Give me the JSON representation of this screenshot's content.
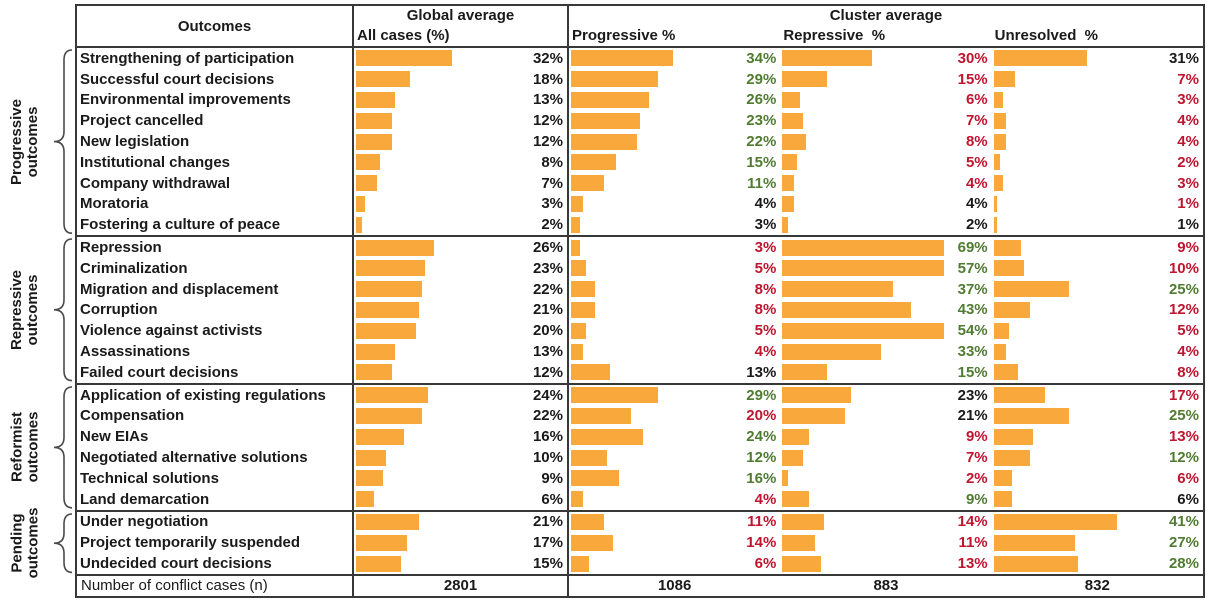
{
  "palette": {
    "bar_orange": "#F9A93C",
    "green": "#507C32",
    "red": "#C0152F",
    "black": "#1A1A1A",
    "border": "#383838"
  },
  "header": {
    "outcomes": "Outcomes",
    "global_title": "Global average",
    "global_sub": "All cases (%)",
    "cluster_title": "Cluster average",
    "cluster_subs": [
      "Progressive %",
      "Repressive  %",
      "Unresolved  %"
    ]
  },
  "footer": {
    "label": "Number of conflict cases (n)",
    "values": [
      "2801",
      "1086",
      "883",
      "832"
    ]
  },
  "chart_data": {
    "type": "bar",
    "orientation": "horizontal",
    "unit": "percent",
    "value_columns": [
      "All cases (%)",
      "Progressive %",
      "Repressive %",
      "Unresolved %"
    ],
    "groups": [
      {
        "label": "Progressive outcomes",
        "label_lines": [
          "Progressive",
          "outcomes"
        ],
        "rows": [
          {
            "name": "Strengthening of participation",
            "global": {
              "value": 32,
              "label": "32%"
            },
            "cluster": [
              {
                "value": 34,
                "label": "34%",
                "color": "green"
              },
              {
                "value": 30,
                "label": "30%",
                "color": "red"
              },
              {
                "value": 31,
                "label": "31%",
                "color": "black"
              }
            ]
          },
          {
            "name": "Successful court decisions",
            "global": {
              "value": 18,
              "label": "18%"
            },
            "cluster": [
              {
                "value": 29,
                "label": "29%",
                "color": "green"
              },
              {
                "value": 15,
                "label": "15%",
                "color": "red"
              },
              {
                "value": 7,
                "label": "7%",
                "color": "red"
              }
            ]
          },
          {
            "name": "Environmental improvements",
            "global": {
              "value": 13,
              "label": "13%"
            },
            "cluster": [
              {
                "value": 26,
                "label": "26%",
                "color": "green"
              },
              {
                "value": 6,
                "label": "6%",
                "color": "red"
              },
              {
                "value": 3,
                "label": "3%",
                "color": "red"
              }
            ]
          },
          {
            "name": "Project cancelled",
            "global": {
              "value": 12,
              "label": "12%"
            },
            "cluster": [
              {
                "value": 23,
                "label": "23%",
                "color": "green"
              },
              {
                "value": 7,
                "label": "7%",
                "color": "red"
              },
              {
                "value": 4,
                "label": "4%",
                "color": "red"
              }
            ]
          },
          {
            "name": "New legislation",
            "global": {
              "value": 12,
              "label": "12%"
            },
            "cluster": [
              {
                "value": 22,
                "label": "22%",
                "color": "green"
              },
              {
                "value": 8,
                "label": "8%",
                "color": "red"
              },
              {
                "value": 4,
                "label": "4%",
                "color": "red"
              }
            ]
          },
          {
            "name": "Institutional changes",
            "global": {
              "value": 8,
              "label": "8%"
            },
            "cluster": [
              {
                "value": 15,
                "label": "15%",
                "color": "green"
              },
              {
                "value": 5,
                "label": "5%",
                "color": "red"
              },
              {
                "value": 2,
                "label": "2%",
                "color": "red"
              }
            ]
          },
          {
            "name": "Company withdrawal",
            "global": {
              "value": 7,
              "label": "7%"
            },
            "cluster": [
              {
                "value": 11,
                "label": "11%",
                "color": "green"
              },
              {
                "value": 4,
                "label": "4%",
                "color": "red"
              },
              {
                "value": 3,
                "label": "3%",
                "color": "red"
              }
            ]
          },
          {
            "name": "Moratoria",
            "global": {
              "value": 3,
              "label": "3%"
            },
            "cluster": [
              {
                "value": 4,
                "label": "4%",
                "color": "black"
              },
              {
                "value": 4,
                "label": "4%",
                "color": "black"
              },
              {
                "value": 1,
                "label": "1%",
                "color": "red"
              }
            ]
          },
          {
            "name": "Fostering a culture of peace",
            "global": {
              "value": 2,
              "label": "2%"
            },
            "cluster": [
              {
                "value": 3,
                "label": "3%",
                "color": "black"
              },
              {
                "value": 2,
                "label": "2%",
                "color": "black"
              },
              {
                "value": 1,
                "label": "1%",
                "color": "black"
              }
            ]
          }
        ]
      },
      {
        "label": "Repressive outcomes",
        "label_lines": [
          "Repressive",
          "outcomes"
        ],
        "rows": [
          {
            "name": "Repression",
            "global": {
              "value": 26,
              "label": "26%"
            },
            "cluster": [
              {
                "value": 3,
                "label": "3%",
                "color": "red"
              },
              {
                "value": 69,
                "label": "69%",
                "color": "green"
              },
              {
                "value": 9,
                "label": "9%",
                "color": "red"
              }
            ]
          },
          {
            "name": "Criminalization",
            "global": {
              "value": 23,
              "label": "23%"
            },
            "cluster": [
              {
                "value": 5,
                "label": "5%",
                "color": "red"
              },
              {
                "value": 57,
                "label": "57%",
                "color": "green"
              },
              {
                "value": 10,
                "label": "10%",
                "color": "red"
              }
            ]
          },
          {
            "name": "Migration and displacement",
            "global": {
              "value": 22,
              "label": "22%"
            },
            "cluster": [
              {
                "value": 8,
                "label": "8%",
                "color": "red"
              },
              {
                "value": 37,
                "label": "37%",
                "color": "green"
              },
              {
                "value": 25,
                "label": "25%",
                "color": "green"
              }
            ]
          },
          {
            "name": "Corruption",
            "global": {
              "value": 21,
              "label": "21%"
            },
            "cluster": [
              {
                "value": 8,
                "label": "8%",
                "color": "red"
              },
              {
                "value": 43,
                "label": "43%",
                "color": "green"
              },
              {
                "value": 12,
                "label": "12%",
                "color": "red"
              }
            ]
          },
          {
            "name": "Violence against activists",
            "global": {
              "value": 20,
              "label": "20%"
            },
            "cluster": [
              {
                "value": 5,
                "label": "5%",
                "color": "red"
              },
              {
                "value": 54,
                "label": "54%",
                "color": "green"
              },
              {
                "value": 5,
                "label": "5%",
                "color": "red"
              }
            ]
          },
          {
            "name": "Assassinations",
            "global": {
              "value": 13,
              "label": "13%"
            },
            "cluster": [
              {
                "value": 4,
                "label": "4%",
                "color": "red"
              },
              {
                "value": 33,
                "label": "33%",
                "color": "green"
              },
              {
                "value": 4,
                "label": "4%",
                "color": "red"
              }
            ]
          },
          {
            "name": "Failed court decisions",
            "global": {
              "value": 12,
              "label": "12%"
            },
            "cluster": [
              {
                "value": 13,
                "label": "13%",
                "color": "black"
              },
              {
                "value": 15,
                "label": "15%",
                "color": "green"
              },
              {
                "value": 8,
                "label": "8%",
                "color": "red"
              }
            ]
          }
        ]
      },
      {
        "label": "Reformist outcomes",
        "label_lines": [
          "Reformist",
          "outcomes"
        ],
        "rows": [
          {
            "name": "Application of existing regulations",
            "global": {
              "value": 24,
              "label": "24%"
            },
            "cluster": [
              {
                "value": 29,
                "label": "29%",
                "color": "green"
              },
              {
                "value": 23,
                "label": "23%",
                "color": "black"
              },
              {
                "value": 17,
                "label": "17%",
                "color": "red"
              }
            ]
          },
          {
            "name": "Compensation",
            "global": {
              "value": 22,
              "label": "22%"
            },
            "cluster": [
              {
                "value": 20,
                "label": "20%",
                "color": "red"
              },
              {
                "value": 21,
                "label": "21%",
                "color": "black"
              },
              {
                "value": 25,
                "label": "25%",
                "color": "green"
              }
            ]
          },
          {
            "name": "New EIAs",
            "global": {
              "value": 16,
              "label": "16%"
            },
            "cluster": [
              {
                "value": 24,
                "label": "24%",
                "color": "green"
              },
              {
                "value": 9,
                "label": "9%",
                "color": "red"
              },
              {
                "value": 13,
                "label": "13%",
                "color": "red"
              }
            ]
          },
          {
            "name": "Negotiated alternative solutions",
            "global": {
              "value": 10,
              "label": "10%"
            },
            "cluster": [
              {
                "value": 12,
                "label": "12%",
                "color": "green"
              },
              {
                "value": 7,
                "label": "7%",
                "color": "red"
              },
              {
                "value": 12,
                "label": "12%",
                "color": "green"
              }
            ]
          },
          {
            "name": "Technical solutions",
            "global": {
              "value": 9,
              "label": "9%"
            },
            "cluster": [
              {
                "value": 16,
                "label": "16%",
                "color": "green"
              },
              {
                "value": 2,
                "label": "2%",
                "color": "red"
              },
              {
                "value": 6,
                "label": "6%",
                "color": "red"
              }
            ]
          },
          {
            "name": "Land demarcation",
            "global": {
              "value": 6,
              "label": "6%"
            },
            "cluster": [
              {
                "value": 4,
                "label": "4%",
                "color": "red"
              },
              {
                "value": 9,
                "label": "9%",
                "color": "green"
              },
              {
                "value": 6,
                "label": "6%",
                "color": "black"
              }
            ]
          }
        ]
      },
      {
        "label": "Pending outcomes",
        "label_lines": [
          "Pending",
          "outcomes"
        ],
        "rows": [
          {
            "name": "Under negotiation",
            "global": {
              "value": 21,
              "label": "21%"
            },
            "cluster": [
              {
                "value": 11,
                "label": "11%",
                "color": "red"
              },
              {
                "value": 14,
                "label": "14%",
                "color": "red"
              },
              {
                "value": 41,
                "label": "41%",
                "color": "green"
              }
            ]
          },
          {
            "name": "Project temporarily suspended",
            "global": {
              "value": 17,
              "label": "17%"
            },
            "cluster": [
              {
                "value": 14,
                "label": "14%",
                "color": "red"
              },
              {
                "value": 11,
                "label": "11%",
                "color": "red"
              },
              {
                "value": 27,
                "label": "27%",
                "color": "green"
              }
            ]
          },
          {
            "name": "Undecided court decisions",
            "global": {
              "value": 15,
              "label": "15%"
            },
            "cluster": [
              {
                "value": 6,
                "label": "6%",
                "color": "red"
              },
              {
                "value": 13,
                "label": "13%",
                "color": "red"
              },
              {
                "value": 28,
                "label": "28%",
                "color": "green"
              }
            ]
          }
        ]
      }
    ],
    "n_row": {
      "label": "Number of conflict cases (n)",
      "values": [
        2801,
        1086,
        883,
        832
      ]
    }
  }
}
